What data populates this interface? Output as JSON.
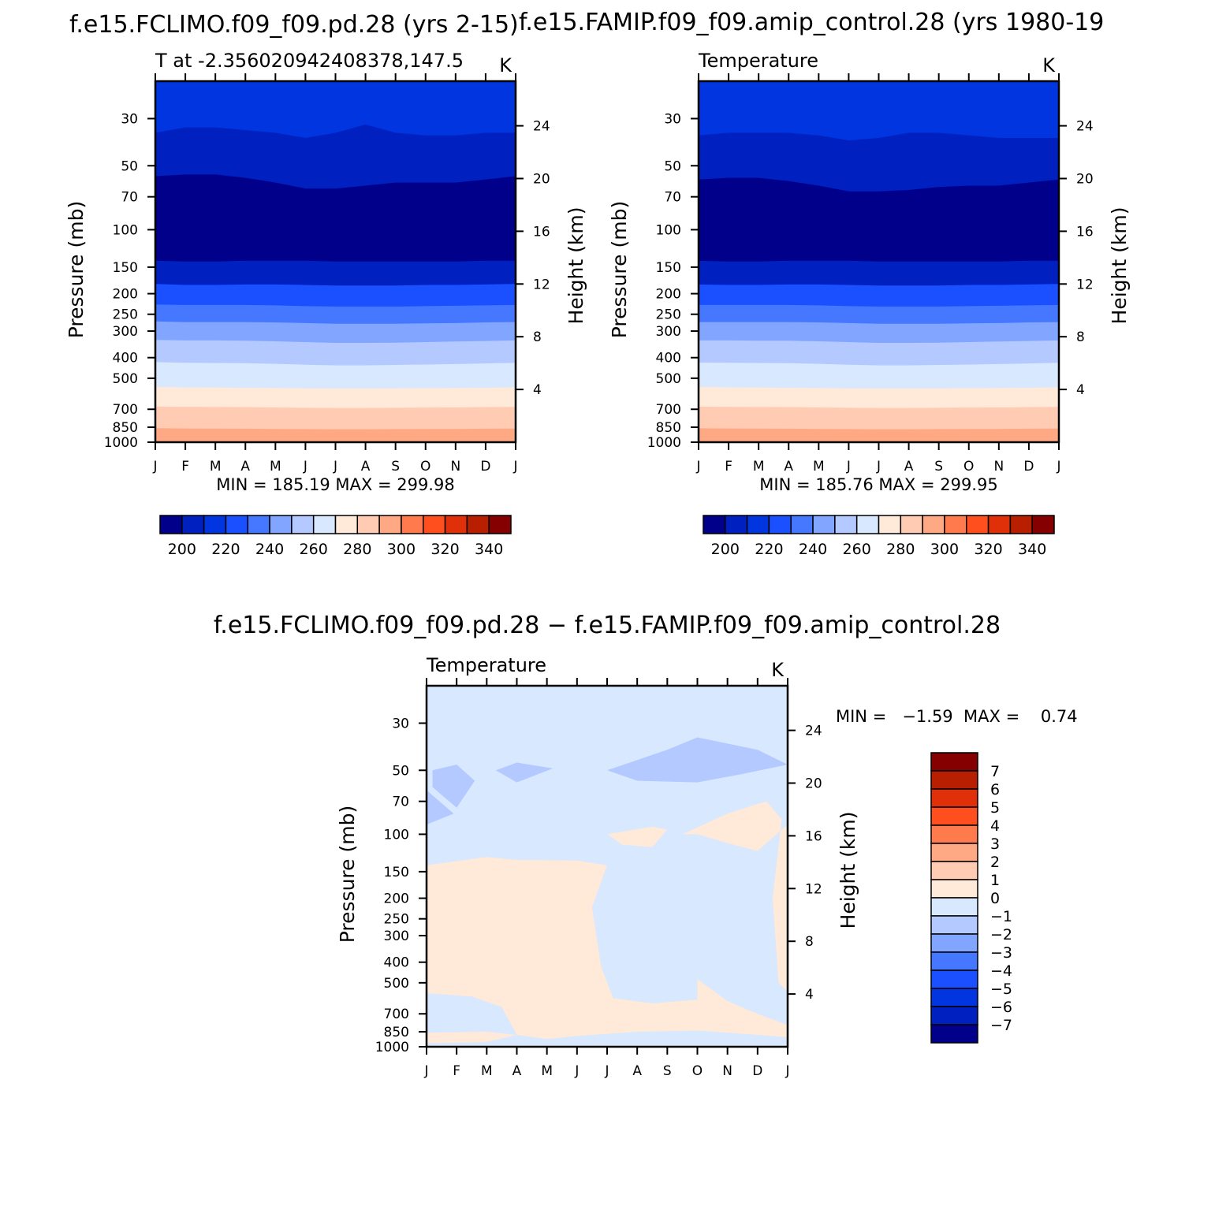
{
  "chart_data": [
    {
      "type": "heatmap",
      "title": "f.e15.FCLIMO.f09_f09.pd.28  (yrs 2-15)",
      "subtitle_left": "T at -2.356020942408378,147.5",
      "subtitle_right": "K",
      "xlabel": "",
      "ylabel": "Pressure (mb)",
      "ylabel_right": "Height (km)",
      "x_ticks": [
        "J",
        "F",
        "M",
        "A",
        "M",
        "J",
        "J",
        "A",
        "S",
        "O",
        "N",
        "D",
        "J"
      ],
      "y_ticks": [
        "30",
        "50",
        "70",
        "100",
        "150",
        "200",
        "250",
        "300",
        "400",
        "500",
        "700",
        "850",
        "1000"
      ],
      "y_ticks_right": [
        "24",
        "20",
        "16",
        "12",
        "8",
        "4"
      ],
      "ylim": [
        1000,
        20
      ],
      "min_label": "MIN = 185.19 MAX = 299.98",
      "min": 185.19,
      "max": 299.98,
      "colorbar_levels": [
        200,
        210,
        220,
        230,
        240,
        250,
        260,
        270,
        280,
        290,
        300,
        310,
        320,
        330,
        340
      ],
      "colorbar_tick_labels": [
        "200",
        "220",
        "240",
        "260",
        "280",
        "300",
        "320",
        "340"
      ],
      "contour_bands": [
        {
          "level": 210,
          "pressure_boundary": [
            35,
            33,
            33,
            34,
            35,
            37,
            35,
            32,
            35,
            36,
            36,
            35,
            35
          ]
        },
        {
          "level": 200,
          "pressure_boundary": [
            56,
            55,
            55,
            57,
            60,
            64,
            64,
            62,
            60,
            60,
            60,
            58,
            56
          ]
        },
        {
          "level": 190,
          "pressure_boundary": [
            140,
            141,
            141,
            140,
            140,
            140,
            141,
            141,
            141,
            141,
            141,
            140,
            140
          ]
        },
        {
          "level": 220,
          "pressure_boundary": [
            180,
            182,
            182,
            181,
            181,
            182,
            183,
            183,
            183,
            182,
            182,
            181,
            180
          ]
        },
        {
          "level": 230,
          "pressure_boundary": [
            225,
            226,
            226,
            226,
            227,
            229,
            230,
            230,
            230,
            229,
            228,
            227,
            226
          ]
        },
        {
          "level": 240,
          "pressure_boundary": [
            270,
            272,
            272,
            272,
            273,
            275,
            277,
            277,
            277,
            276,
            275,
            273,
            272
          ]
        },
        {
          "level": 250,
          "pressure_boundary": [
            330,
            332,
            332,
            333,
            335,
            338,
            341,
            341,
            340,
            338,
            336,
            334,
            332
          ]
        },
        {
          "level": 260,
          "pressure_boundary": [
            420,
            423,
            424,
            425,
            428,
            432,
            435,
            435,
            433,
            431,
            429,
            426,
            423
          ]
        },
        {
          "level": 270,
          "pressure_boundary": [
            550,
            552,
            553,
            554,
            556,
            558,
            559,
            559,
            558,
            557,
            556,
            554,
            552
          ]
        },
        {
          "level": 280,
          "pressure_boundary": [
            680,
            682,
            683,
            684,
            686,
            689,
            690,
            690,
            689,
            687,
            686,
            684,
            682
          ]
        },
        {
          "level": 290,
          "pressure_boundary": [
            860,
            862,
            863,
            864,
            866,
            868,
            869,
            869,
            868,
            867,
            866,
            864,
            862
          ]
        }
      ]
    },
    {
      "type": "heatmap",
      "title": "f.e15.FAMIP.f09_f09.amip_control.28 (yrs 1980-19",
      "subtitle_left": "Temperature",
      "subtitle_right": "K",
      "xlabel": "",
      "ylabel": "Pressure (mb)",
      "ylabel_right": "Height (km)",
      "x_ticks": [
        "J",
        "F",
        "M",
        "A",
        "M",
        "J",
        "J",
        "A",
        "S",
        "O",
        "N",
        "D",
        "J"
      ],
      "y_ticks": [
        "30",
        "50",
        "70",
        "100",
        "150",
        "200",
        "250",
        "300",
        "400",
        "500",
        "700",
        "850",
        "1000"
      ],
      "y_ticks_right": [
        "24",
        "20",
        "16",
        "12",
        "8",
        "4"
      ],
      "ylim": [
        1000,
        20
      ],
      "min_label": "MIN = 185.76 MAX = 299.95",
      "min": 185.76,
      "max": 299.95,
      "colorbar_levels": [
        200,
        210,
        220,
        230,
        240,
        250,
        260,
        270,
        280,
        290,
        300,
        310,
        320,
        330,
        340
      ],
      "colorbar_tick_labels": [
        "200",
        "220",
        "240",
        "260",
        "280",
        "300",
        "320",
        "340"
      ],
      "contour_bands": [
        {
          "level": 210,
          "pressure_boundary": [
            36,
            35,
            35,
            35,
            36,
            38,
            37,
            35,
            35,
            36,
            37,
            37,
            37
          ]
        },
        {
          "level": 200,
          "pressure_boundary": [
            58,
            57,
            57,
            59,
            62,
            66,
            66,
            65,
            63,
            62,
            62,
            60,
            58
          ]
        },
        {
          "level": 190,
          "pressure_boundary": [
            140,
            141,
            141,
            140,
            140,
            140,
            141,
            141,
            141,
            141,
            141,
            140,
            140
          ]
        },
        {
          "level": 220,
          "pressure_boundary": [
            181,
            182,
            182,
            181,
            181,
            182,
            183,
            183,
            183,
            182,
            182,
            181,
            180
          ]
        },
        {
          "level": 230,
          "pressure_boundary": [
            226,
            226,
            226,
            226,
            227,
            229,
            230,
            230,
            230,
            229,
            228,
            227,
            226
          ]
        },
        {
          "level": 240,
          "pressure_boundary": [
            272,
            272,
            272,
            272,
            273,
            275,
            277,
            277,
            277,
            276,
            275,
            273,
            272
          ]
        },
        {
          "level": 250,
          "pressure_boundary": [
            332,
            332,
            333,
            333,
            335,
            338,
            341,
            341,
            340,
            338,
            336,
            334,
            332
          ]
        },
        {
          "level": 260,
          "pressure_boundary": [
            422,
            423,
            424,
            425,
            428,
            432,
            435,
            435,
            433,
            431,
            429,
            426,
            423
          ]
        },
        {
          "level": 270,
          "pressure_boundary": [
            550,
            552,
            553,
            554,
            556,
            558,
            559,
            559,
            558,
            557,
            556,
            554,
            552
          ]
        },
        {
          "level": 280,
          "pressure_boundary": [
            680,
            682,
            683,
            684,
            686,
            689,
            690,
            690,
            689,
            687,
            686,
            684,
            682
          ]
        },
        {
          "level": 290,
          "pressure_boundary": [
            860,
            862,
            863,
            864,
            866,
            868,
            869,
            869,
            868,
            867,
            866,
            864,
            862
          ]
        }
      ]
    },
    {
      "type": "heatmap",
      "title": "f.e15.FCLIMO.f09_f09.pd.28 - f.e15.FAMIP.f09_f09.amip_control.28",
      "subtitle_left": "Temperature",
      "subtitle_right": "K",
      "xlabel": "",
      "ylabel": "Pressure (mb)",
      "ylabel_right": "Height (km)",
      "x_ticks": [
        "J",
        "F",
        "M",
        "A",
        "M",
        "J",
        "J",
        "A",
        "S",
        "O",
        "N",
        "D",
        "J"
      ],
      "y_ticks": [
        "30",
        "50",
        "70",
        "100",
        "150",
        "200",
        "250",
        "300",
        "400",
        "500",
        "700",
        "850",
        "1000"
      ],
      "y_ticks_right": [
        "24",
        "20",
        "16",
        "12",
        "8",
        "4"
      ],
      "ylim": [
        1000,
        20
      ],
      "min_label": "MIN =   -1.59  MAX =    0.74",
      "min": -1.59,
      "max": 0.74,
      "colorbar_levels": [
        -7,
        -6,
        -5,
        -4,
        -3,
        -2,
        -1,
        0,
        1,
        2,
        3,
        4,
        5,
        6,
        7
      ],
      "colorbar_tick_labels": [
        "7",
        "6",
        "5",
        "4",
        "3",
        "2",
        "1",
        "0",
        "-1",
        "-2",
        "-3",
        "-4",
        "-5",
        "-6",
        "-7"
      ],
      "background_value_range": [
        -1,
        0
      ],
      "regions": [
        {
          "range": [
            -2,
            -1
          ],
          "polygon": [
            [
              0.2,
              50
            ],
            [
              1.0,
              47
            ],
            [
              1.6,
              56
            ],
            [
              1.0,
              75
            ],
            [
              0.2,
              60
            ]
          ]
        },
        {
          "range": [
            -2,
            -1
          ],
          "polygon": [
            [
              0.0,
              62
            ],
            [
              0.9,
              80
            ],
            [
              0.0,
              90
            ]
          ]
        },
        {
          "range": [
            -2,
            -1
          ],
          "polygon": [
            [
              2.3,
              50
            ],
            [
              3.0,
              46
            ],
            [
              4.2,
              49
            ],
            [
              3.0,
              57
            ]
          ]
        },
        {
          "range": [
            -2,
            -1
          ],
          "polygon": [
            [
              6.0,
              50
            ],
            [
              8.0,
              40
            ],
            [
              9.0,
              35
            ],
            [
              11.0,
              40
            ],
            [
              12.0,
              47
            ],
            [
              10.5,
              52
            ],
            [
              9.0,
              57
            ],
            [
              7.0,
              56
            ]
          ]
        },
        {
          "range": [
            0,
            1
          ],
          "polygon": [
            [
              0.0,
              140
            ],
            [
              2.0,
              128
            ],
            [
              3.0,
              132
            ],
            [
              5.0,
              133
            ],
            [
              6.0,
              140
            ],
            [
              5.5,
              220
            ],
            [
              5.8,
              420
            ],
            [
              6.2,
              590
            ],
            [
              7.5,
              625
            ],
            [
              9.0,
              600
            ],
            [
              9.0,
              480
            ],
            [
              10.0,
              610
            ],
            [
              11.0,
              700
            ],
            [
              12.0,
              790
            ],
            [
              12.0,
              900
            ],
            [
              11.0,
              880
            ],
            [
              9.0,
              840
            ],
            [
              7.0,
              850
            ],
            [
              6.0,
              870
            ],
            [
              5.0,
              890
            ],
            [
              4.0,
              920
            ],
            [
              3.0,
              880
            ],
            [
              2.5,
              650
            ],
            [
              1.5,
              580
            ],
            [
              0.0,
              560
            ]
          ]
        },
        {
          "range": [
            0,
            1
          ],
          "polygon": [
            [
              6.0,
              100
            ],
            [
              7.5,
              92
            ],
            [
              8.0,
              95
            ],
            [
              7.5,
              115
            ],
            [
              6.5,
              112
            ]
          ]
        },
        {
          "range": [
            0,
            1
          ],
          "polygon": [
            [
              8.5,
              100
            ],
            [
              10.0,
              80
            ],
            [
              11.0,
              72
            ],
            [
              11.3,
              70
            ],
            [
              11.8,
              85
            ],
            [
              11.5,
              200
            ],
            [
              11.7,
              500
            ],
            [
              12.0,
              550
            ],
            [
              12.0,
              90
            ],
            [
              11.0,
              120
            ],
            [
              10.0,
              110
            ],
            [
              9.0,
              100
            ]
          ]
        },
        {
          "range": [
            0,
            1
          ],
          "polygon": [
            [
              0.0,
              860
            ],
            [
              2.0,
              850
            ],
            [
              3.0,
              880
            ],
            [
              2.0,
              950
            ],
            [
              0.5,
              960
            ],
            [
              0.0,
              960
            ]
          ]
        },
        {
          "range": [
            0,
            1
          ],
          "polygon": [
            [
              0.0,
              990
            ],
            [
              12.0,
              990
            ],
            [
              12.0,
              1000
            ],
            [
              0.0,
              1000
            ]
          ]
        }
      ]
    }
  ]
}
